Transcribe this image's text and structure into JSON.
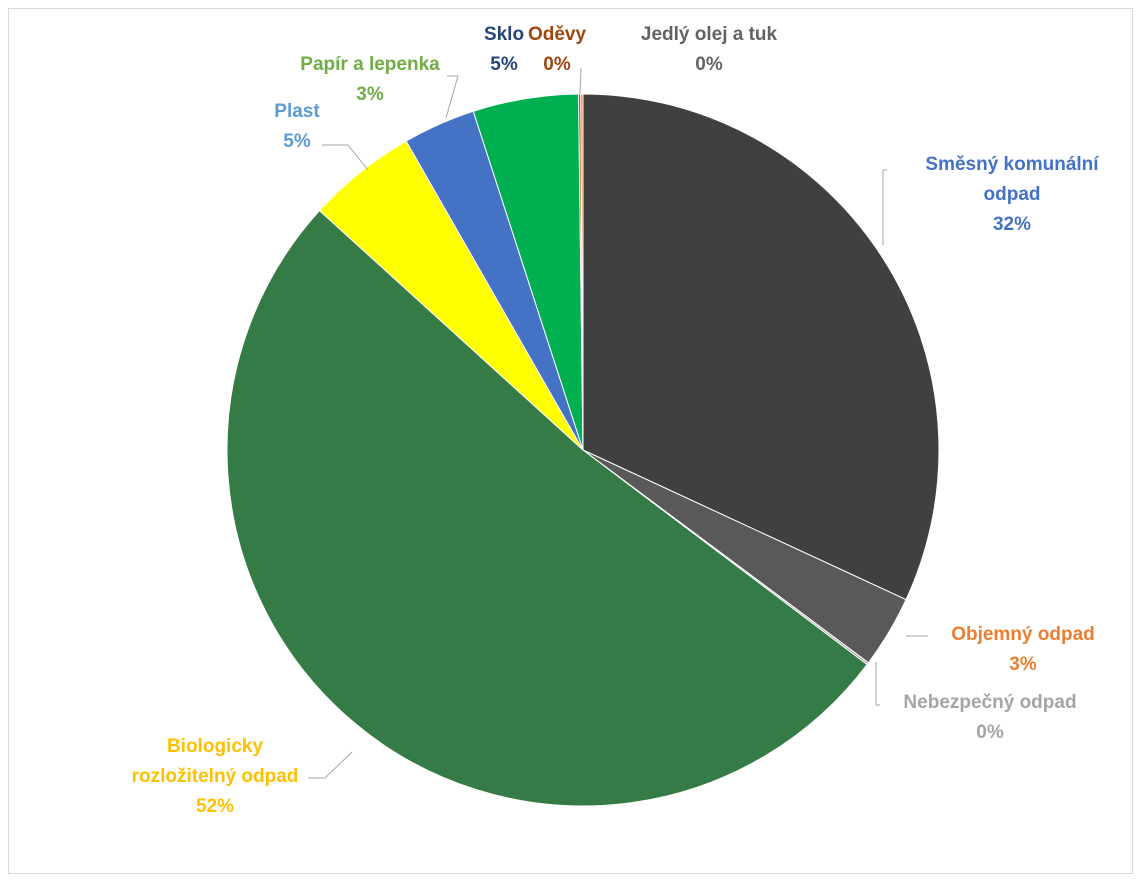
{
  "chart_data": {
    "type": "pie",
    "title": "",
    "slices": [
      {
        "label": "Směsný komunální odpad",
        "label_lines": [
          "Směsný komunální",
          "odpad"
        ],
        "pct_label": "32%",
        "value": 32,
        "color": "#404040",
        "label_color": "#4472C4"
      },
      {
        "label": "Objemný odpad",
        "label_lines": [
          "Objemný odpad"
        ],
        "pct_label": "3%",
        "value": 3.3,
        "color": "#595959",
        "label_color": "#ED7D31"
      },
      {
        "label": "Nebezpečný odpad",
        "label_lines": [
          "Nebezpečný odpad"
        ],
        "pct_label": "0%",
        "value": 0.1,
        "color": "#A5A5A5",
        "label_color": "#A5A5A5"
      },
      {
        "label": "Biologicky rozložitelný odpad",
        "label_lines": [
          "Biologicky",
          "rozložitelný odpad"
        ],
        "pct_label": "52%",
        "value": 51.6,
        "color": "#357B45",
        "label_color": "#FFC000"
      },
      {
        "label": "Plast",
        "label_lines": [
          "Plast"
        ],
        "pct_label": "5%",
        "value": 5.0,
        "color": "#FFFF00",
        "label_color": "#5B9BD5"
      },
      {
        "label": "Papír a lepenka",
        "label_lines": [
          "Papír a lepenka"
        ],
        "pct_label": "3%",
        "value": 3.3,
        "color": "#4472C4",
        "label_color": "#70AD47"
      },
      {
        "label": "Sklo",
        "label_lines": [
          "Sklo"
        ],
        "pct_label": "5%",
        "value": 4.8,
        "color": "#00B050",
        "label_color": "#264478"
      },
      {
        "label": "Oděvy",
        "label_lines": [
          "Oděvy"
        ],
        "pct_label": "0%",
        "value": 0.1,
        "color": "#9E480E",
        "label_color": "#9E480E"
      },
      {
        "label": "Jedlý olej a tuk",
        "label_lines": [
          "Jedlý olej a tuk"
        ],
        "pct_label": "0%",
        "value": 0.1,
        "color": "#ED7D31",
        "label_color": "#636363"
      }
    ],
    "legend": "none",
    "start_angle": "12 o'clock, clockwise"
  }
}
